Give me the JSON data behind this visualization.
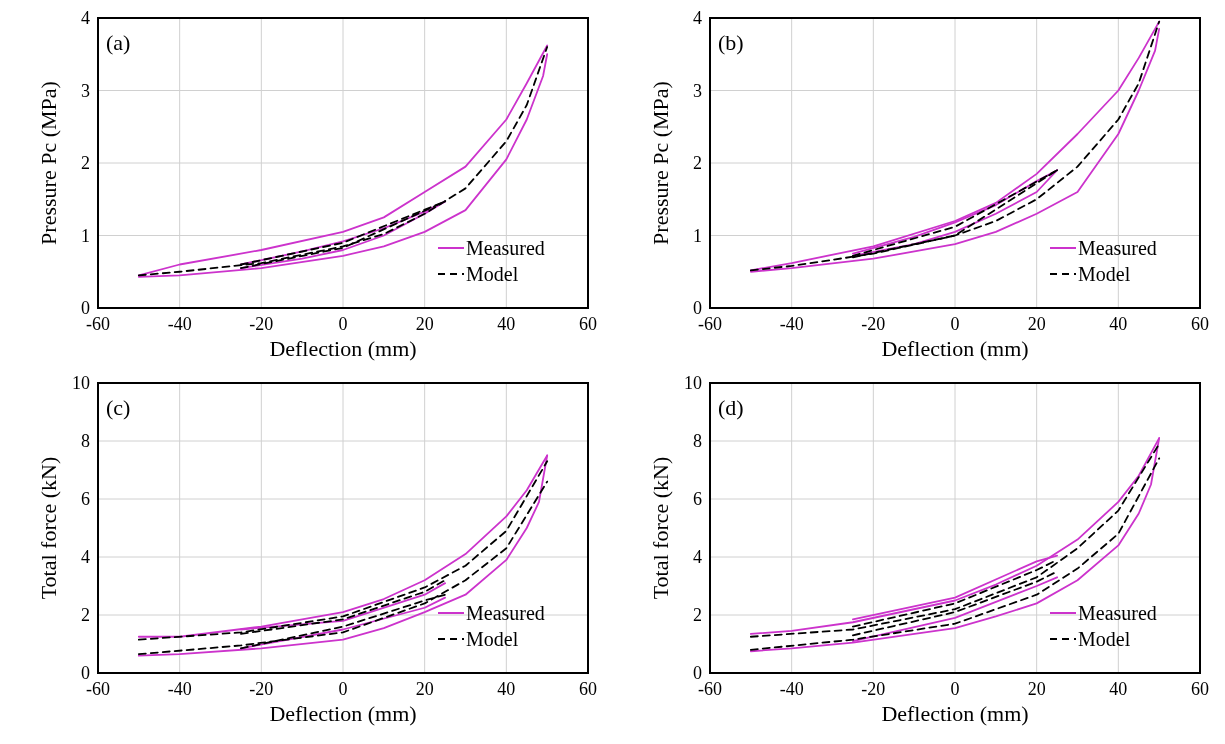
{
  "chart_data": [
    {
      "type": "line",
      "xlabel": "Deflection (mm)",
      "ylabel": "Pressure Pc (MPa)",
      "xlim": [
        -60,
        60
      ],
      "xticks": [
        -60,
        -40,
        -20,
        0,
        20,
        40,
        60
      ],
      "ylim": [
        0,
        4
      ],
      "yticks": [
        0,
        1,
        2,
        3,
        4
      ],
      "grid": true,
      "legend": "bottom right",
      "annotations": [
        "(a)"
      ],
      "series": [
        {
          "name": "Measured",
          "color": "#cc33cc",
          "line_style": "solid",
          "x": [
            -50,
            -40,
            -20,
            0,
            10,
            20,
            30,
            40,
            45,
            50
          ],
          "values": [
            0.45,
            0.6,
            0.8,
            1.05,
            1.25,
            1.6,
            1.95,
            2.6,
            3.1,
            3.62
          ]
        },
        {
          "color": "#cc33cc",
          "line_style": "solid",
          "x": [
            -50,
            -40,
            -20,
            0,
            10,
            20,
            30,
            40,
            45,
            49,
            50
          ],
          "values": [
            0.43,
            0.45,
            0.55,
            0.72,
            0.85,
            1.05,
            1.35,
            2.05,
            2.6,
            3.2,
            3.5
          ]
        },
        {
          "color": "#cc33cc",
          "line_style": "solid",
          "x": [
            -25,
            -10,
            0,
            10,
            20,
            25
          ],
          "values": [
            0.6,
            0.78,
            0.92,
            1.1,
            1.33,
            1.47
          ]
        },
        {
          "color": "#cc33cc",
          "line_style": "solid",
          "x": [
            -25,
            -10,
            0,
            10,
            20,
            25
          ],
          "values": [
            0.55,
            0.68,
            0.8,
            1.0,
            1.3,
            1.47
          ]
        },
        {
          "name": "Model",
          "color": "#000000",
          "line_style": "dashed",
          "x": [
            -50,
            -40,
            -20,
            0,
            10,
            20,
            30,
            40,
            45,
            50
          ],
          "values": [
            0.45,
            0.5,
            0.62,
            0.85,
            1.02,
            1.3,
            1.65,
            2.3,
            2.8,
            3.6
          ]
        },
        {
          "color": "#000000",
          "line_style": "dashed",
          "x": [
            -25,
            0,
            25
          ],
          "values": [
            0.6,
            0.9,
            1.47
          ]
        },
        {
          "color": "#000000",
          "line_style": "dashed",
          "x": [
            -25,
            0,
            25
          ],
          "values": [
            0.55,
            0.83,
            1.47
          ]
        }
      ]
    },
    {
      "type": "line",
      "xlabel": "Deflection (mm)",
      "ylabel": "Pressure Pc (MPa)",
      "xlim": [
        -60,
        60
      ],
      "xticks": [
        -60,
        -40,
        -20,
        0,
        20,
        40,
        60
      ],
      "ylim": [
        0,
        4
      ],
      "yticks": [
        0,
        1,
        2,
        3,
        4
      ],
      "grid": true,
      "legend": "bottom right",
      "annotations": [
        "(b)"
      ],
      "series": [
        {
          "name": "Measured",
          "color": "#cc33cc",
          "line_style": "solid",
          "x": [
            -50,
            -40,
            -20,
            0,
            10,
            20,
            30,
            40,
            45,
            50
          ],
          "values": [
            0.52,
            0.62,
            0.85,
            1.2,
            1.45,
            1.85,
            2.4,
            3.0,
            3.45,
            3.95
          ]
        },
        {
          "color": "#cc33cc",
          "line_style": "solid",
          "x": [
            -50,
            -40,
            -20,
            0,
            10,
            20,
            30,
            40,
            45,
            49,
            50
          ],
          "values": [
            0.5,
            0.55,
            0.68,
            0.88,
            1.05,
            1.3,
            1.6,
            2.4,
            3.0,
            3.55,
            3.85
          ]
        },
        {
          "color": "#cc33cc",
          "line_style": "solid",
          "x": [
            -25,
            -10,
            0,
            10,
            20,
            25
          ],
          "values": [
            0.75,
            0.98,
            1.18,
            1.42,
            1.75,
            1.9
          ]
        },
        {
          "color": "#cc33cc",
          "line_style": "solid",
          "x": [
            -25,
            -10,
            0,
            10,
            20,
            25
          ],
          "values": [
            0.72,
            0.88,
            1.05,
            1.3,
            1.6,
            1.9
          ]
        },
        {
          "name": "Model",
          "color": "#000000",
          "line_style": "dashed",
          "x": [
            -50,
            -40,
            -20,
            0,
            10,
            20,
            30,
            40,
            45,
            50
          ],
          "values": [
            0.52,
            0.58,
            0.75,
            1.0,
            1.2,
            1.5,
            1.95,
            2.6,
            3.1,
            3.95
          ]
        },
        {
          "color": "#000000",
          "line_style": "dashed",
          "x": [
            -25,
            0,
            25
          ],
          "values": [
            0.72,
            1.12,
            1.9
          ]
        },
        {
          "color": "#000000",
          "line_style": "dashed",
          "x": [
            -25,
            0,
            25
          ],
          "values": [
            0.7,
            1.0,
            1.9
          ]
        }
      ]
    },
    {
      "type": "line",
      "xlabel": "Deflection (mm)",
      "ylabel": "Total force (kN)",
      "xlim": [
        -60,
        60
      ],
      "xticks": [
        -60,
        -40,
        -20,
        0,
        20,
        40,
        60
      ],
      "ylim": [
        0,
        10
      ],
      "yticks": [
        0,
        2,
        4,
        6,
        8,
        10
      ],
      "grid": true,
      "legend": "bottom right",
      "annotations": [
        "(c)"
      ],
      "series": [
        {
          "name": "Measured",
          "color": "#cc33cc",
          "line_style": "solid",
          "x": [
            -50,
            -40,
            -20,
            0,
            10,
            20,
            30,
            40,
            45,
            50
          ],
          "values": [
            1.25,
            1.25,
            1.6,
            2.1,
            2.55,
            3.2,
            4.1,
            5.4,
            6.3,
            7.5
          ]
        },
        {
          "color": "#cc33cc",
          "line_style": "solid",
          "x": [
            -50,
            -40,
            -20,
            0,
            10,
            20,
            30,
            40,
            45,
            48,
            50
          ],
          "values": [
            0.6,
            0.65,
            0.85,
            1.15,
            1.55,
            2.1,
            2.7,
            3.9,
            5.0,
            5.9,
            7.5
          ]
        },
        {
          "color": "#cc33cc",
          "line_style": "solid",
          "x": [
            -25,
            0,
            20,
            25
          ],
          "values": [
            1.5,
            1.8,
            2.7,
            3.1
          ]
        },
        {
          "color": "#cc33cc",
          "line_style": "solid",
          "x": [
            -25,
            0,
            20,
            25
          ],
          "values": [
            0.85,
            1.5,
            2.25,
            2.6
          ]
        },
        {
          "name": "Model",
          "color": "#000000",
          "line_style": "dashed",
          "x": [
            -50,
            -25,
            0,
            20,
            30,
            40,
            50
          ],
          "values": [
            1.15,
            1.4,
            1.95,
            2.95,
            3.7,
            4.9,
            7.3
          ]
        },
        {
          "color": "#000000",
          "line_style": "dashed",
          "x": [
            -50,
            -25,
            0,
            20,
            30,
            40,
            50
          ],
          "values": [
            0.65,
            0.95,
            1.4,
            2.4,
            3.2,
            4.3,
            6.6
          ]
        },
        {
          "color": "#000000",
          "line_style": "dashed",
          "x": [
            -25,
            0,
            20,
            25
          ],
          "values": [
            1.35,
            1.85,
            2.8,
            3.2
          ]
        },
        {
          "color": "#000000",
          "line_style": "dashed",
          "x": [
            -25,
            0,
            20,
            25
          ],
          "values": [
            0.85,
            1.6,
            2.5,
            2.7
          ]
        }
      ]
    },
    {
      "type": "line",
      "xlabel": "Deflection (mm)",
      "ylabel": "Total force (kN)",
      "xlim": [
        -60,
        60
      ],
      "xticks": [
        -60,
        -40,
        -20,
        0,
        20,
        40,
        60
      ],
      "ylim": [
        0,
        10
      ],
      "yticks": [
        0,
        2,
        4,
        6,
        8,
        10
      ],
      "grid": true,
      "legend": "bottom right",
      "annotations": [
        "(d)"
      ],
      "series": [
        {
          "name": "Measured",
          "color": "#cc33cc",
          "line_style": "solid",
          "x": [
            -50,
            -40,
            -25,
            0,
            10,
            20,
            30,
            40,
            45,
            50
          ],
          "values": [
            1.35,
            1.45,
            1.75,
            2.5,
            3.05,
            3.7,
            4.6,
            5.9,
            6.8,
            8.1
          ]
        },
        {
          "color": "#cc33cc",
          "line_style": "solid",
          "x": [
            -50,
            -40,
            -25,
            0,
            10,
            20,
            30,
            40,
            45,
            48,
            50
          ],
          "values": [
            0.75,
            0.85,
            1.05,
            1.55,
            1.95,
            2.4,
            3.2,
            4.4,
            5.5,
            6.5,
            8.1
          ]
        },
        {
          "color": "#cc33cc",
          "line_style": "solid",
          "x": [
            -25,
            0,
            20,
            25
          ],
          "values": [
            1.85,
            2.6,
            3.85,
            4.05
          ]
        },
        {
          "color": "#cc33cc",
          "line_style": "solid",
          "x": [
            -25,
            0,
            20,
            25
          ],
          "values": [
            1.1,
            1.9,
            3.0,
            3.3
          ]
        },
        {
          "name": "Model",
          "color": "#000000",
          "line_style": "dashed",
          "x": [
            -50,
            -25,
            0,
            20,
            30,
            40,
            50
          ],
          "values": [
            1.25,
            1.5,
            2.2,
            3.3,
            4.3,
            5.6,
            7.9
          ]
        },
        {
          "color": "#000000",
          "line_style": "dashed",
          "x": [
            -50,
            -25,
            0,
            20,
            30,
            40,
            50
          ],
          "values": [
            0.8,
            1.15,
            1.7,
            2.7,
            3.6,
            4.8,
            7.4
          ]
        },
        {
          "color": "#000000",
          "line_style": "dashed",
          "x": [
            -25,
            0,
            20,
            25
          ],
          "values": [
            1.6,
            2.4,
            3.55,
            3.9
          ]
        },
        {
          "color": "#000000",
          "line_style": "dashed",
          "x": [
            -25,
            0,
            20,
            25
          ],
          "values": [
            1.3,
            2.1,
            3.15,
            3.5
          ]
        }
      ]
    }
  ]
}
